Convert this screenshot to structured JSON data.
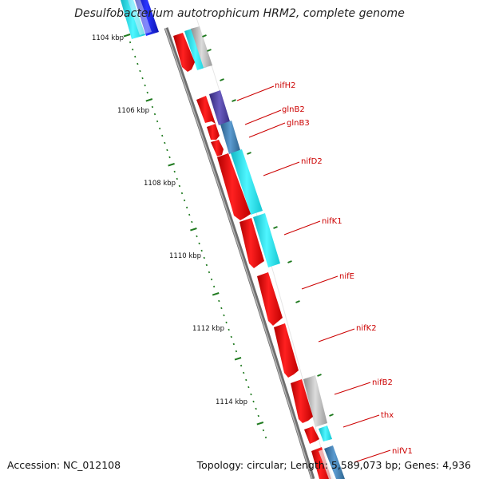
{
  "title": "Desulfobacterium autotrophicum HRM2, complete genome",
  "footer": {
    "accession": "Accession: NC_012108",
    "summary": "Topology: circular; Length: 5,589,073 bp; Genes: 4,936"
  },
  "kbp_labels": [
    "1104 kbp",
    "1106 kbp",
    "1108 kbp",
    "1110 kbp",
    "1112 kbp",
    "1114 kbp"
  ],
  "gene_labels": [
    "nifH2",
    "glnB2",
    "glnB3",
    "nifD2",
    "nifK1",
    "nifE",
    "nifK2",
    "nifB2",
    "thx",
    "nifV1"
  ],
  "colors": {
    "cds": "#ff0000",
    "backbone": "#7a7a7a",
    "tick": "#1f7a1f",
    "label": "#cc0000",
    "cyan": "#22e8f0",
    "blue": "#1a22e0",
    "steel": "#3d7fb5",
    "indigo": "#4b3f9a",
    "gray": "#aaaaaa"
  }
}
